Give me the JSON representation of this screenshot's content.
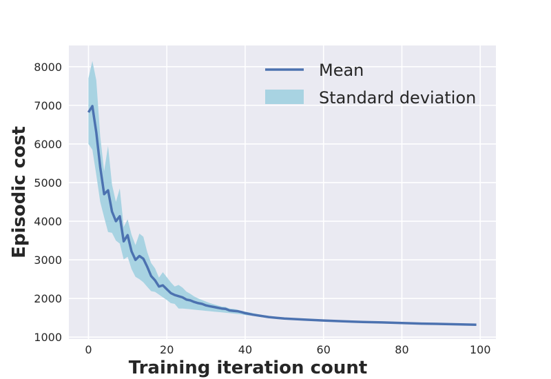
{
  "chart_data": {
    "type": "line",
    "title": "",
    "xlabel": "Training iteration count",
    "ylabel": "Episodic cost",
    "xlim": [
      -5,
      104
    ],
    "ylim": [
      950,
      8550
    ],
    "xticks": [
      0,
      20,
      40,
      60,
      80,
      100
    ],
    "yticks": [
      1000,
      2000,
      3000,
      4000,
      5000,
      6000,
      7000,
      8000
    ],
    "grid": true,
    "legend_position": "top-right",
    "colors": {
      "background": "#eaeaf2",
      "grid": "#ffffff",
      "mean": "#4c72b0",
      "band": "#a8d3e2"
    },
    "series": [
      {
        "name": "Mean",
        "kind": "line",
        "x": [
          0,
          1,
          2,
          3,
          4,
          5,
          6,
          7,
          8,
          9,
          10,
          11,
          12,
          13,
          14,
          15,
          16,
          17,
          18,
          19,
          20,
          21,
          22,
          23,
          24,
          25,
          26,
          27,
          28,
          29,
          30,
          31,
          32,
          33,
          34,
          35,
          36,
          37,
          38,
          39,
          40,
          42,
          44,
          46,
          48,
          50,
          55,
          60,
          65,
          70,
          75,
          80,
          85,
          90,
          95,
          99
        ],
        "y": [
          6820,
          6980,
          6300,
          5400,
          4700,
          4800,
          4250,
          4000,
          4130,
          3480,
          3640,
          3220,
          3000,
          3100,
          3030,
          2820,
          2580,
          2470,
          2310,
          2340,
          2240,
          2140,
          2090,
          2060,
          2030,
          1970,
          1950,
          1910,
          1880,
          1860,
          1820,
          1800,
          1780,
          1760,
          1740,
          1730,
          1690,
          1680,
          1670,
          1650,
          1620,
          1580,
          1550,
          1520,
          1500,
          1480,
          1455,
          1430,
          1410,
          1390,
          1380,
          1365,
          1350,
          1340,
          1330,
          1320
        ]
      },
      {
        "name": "Standard deviation",
        "kind": "band",
        "x": [
          0,
          1,
          2,
          3,
          4,
          5,
          6,
          7,
          8,
          9,
          10,
          11,
          12,
          13,
          14,
          15,
          16,
          17,
          18,
          19,
          20,
          21,
          22,
          23,
          24,
          25,
          26,
          27,
          28,
          29,
          30,
          31,
          32,
          33,
          34,
          35,
          36,
          37,
          38,
          39,
          40,
          42,
          44,
          46,
          48,
          50,
          55,
          60,
          65,
          70,
          75,
          80,
          85,
          90,
          95,
          99
        ],
        "upper": [
          7700,
          8150,
          7650,
          6200,
          5300,
          5950,
          4950,
          4500,
          4850,
          3850,
          4050,
          3650,
          3380,
          3680,
          3600,
          3200,
          2920,
          2780,
          2540,
          2680,
          2550,
          2420,
          2310,
          2350,
          2280,
          2180,
          2120,
          2050,
          2000,
          1960,
          1920,
          1880,
          1850,
          1820,
          1790,
          1780,
          1740,
          1730,
          1710,
          1680,
          1660,
          1620,
          1580,
          1550,
          1520,
          1500,
          1470,
          1450,
          1425,
          1405,
          1390,
          1375,
          1360,
          1350,
          1340,
          1330
        ],
        "lower": [
          6000,
          5850,
          5200,
          4500,
          4100,
          3720,
          3700,
          3500,
          3420,
          3010,
          3080,
          2760,
          2560,
          2500,
          2420,
          2300,
          2190,
          2170,
          2100,
          2030,
          1960,
          1880,
          1860,
          1740,
          1740,
          1730,
          1720,
          1710,
          1700,
          1690,
          1680,
          1670,
          1660,
          1650,
          1640,
          1630,
          1620,
          1610,
          1600,
          1590,
          1570,
          1550,
          1520,
          1495,
          1480,
          1460,
          1440,
          1415,
          1395,
          1375,
          1365,
          1350,
          1335,
          1325,
          1315,
          1305
        ]
      }
    ]
  }
}
